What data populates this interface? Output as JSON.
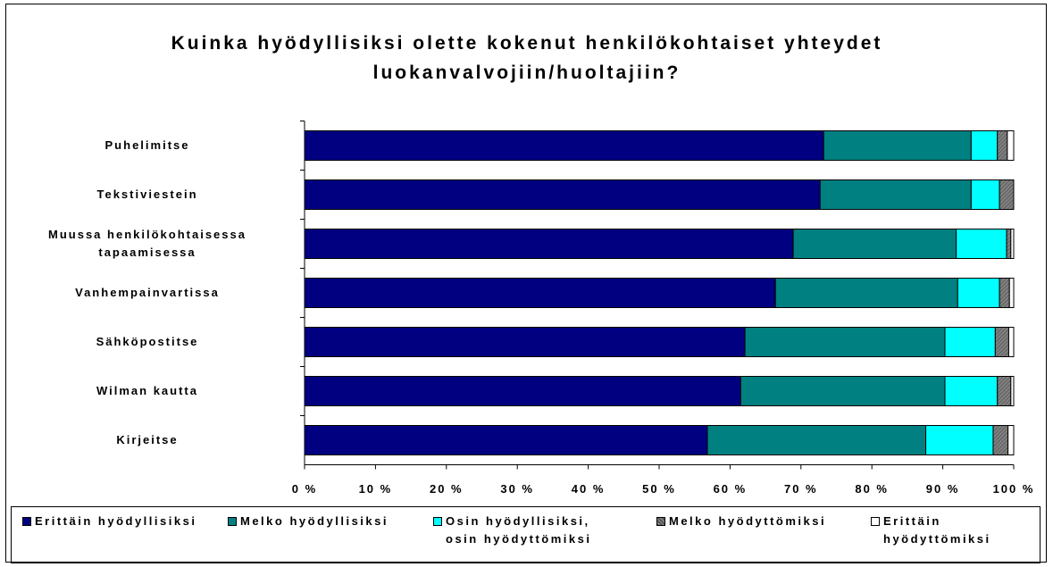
{
  "chart_data": {
    "type": "stacked_bar_horizontal",
    "title": "Kuinka hyödyllisiksi olette kokenut henkilökohtaiset yhteydet luokanvalvojiin/huoltajiin?",
    "categories": [
      "Puhelimitse",
      "Tekstiviestein",
      "Muussa henkilökohtaisessa tapaamisessa",
      "Vanhempainvartissa",
      "Sähköpostitse",
      "Wilman kautta",
      "Kirjeitse"
    ],
    "series": [
      {
        "name": "Erittäin hyödyllisiksi",
        "color": "#000080",
        "values": [
          73.2,
          72.7,
          68.9,
          66.4,
          62.1,
          61.5,
          56.8
        ]
      },
      {
        "name": "Melko hyödyllisiksi",
        "color": "#008080",
        "values": [
          20.8,
          21.3,
          23.0,
          25.7,
          28.2,
          28.8,
          30.8
        ]
      },
      {
        "name": "Osin hyödyllisiksi, osin hyödyttömiksi",
        "color": "#00ffff",
        "values": [
          3.7,
          4.0,
          7.1,
          5.9,
          7.1,
          7.4,
          9.5
        ]
      },
      {
        "name": "Melko hyödyttömiksi",
        "color": "#808080",
        "values": [
          1.4,
          2.0,
          0.6,
          1.4,
          1.9,
          1.9,
          2.1
        ]
      },
      {
        "name": "Erittäin hyödyttömiksi",
        "color": "#ffffff",
        "values": [
          0.9,
          0.0,
          0.4,
          0.6,
          0.7,
          0.4,
          0.8
        ]
      }
    ],
    "xlim": [
      0,
      100
    ],
    "xticks": [
      {
        "value": 0,
        "label": "0 %"
      },
      {
        "value": 10,
        "label": "10 %"
      },
      {
        "value": 20,
        "label": "20 %"
      },
      {
        "value": 30,
        "label": "30 %"
      },
      {
        "value": 40,
        "label": "40 %"
      },
      {
        "value": 50,
        "label": "50 %"
      },
      {
        "value": 60,
        "label": "60 %"
      },
      {
        "value": 70,
        "label": "70 %"
      },
      {
        "value": 80,
        "label": "80 %"
      },
      {
        "value": 90,
        "label": "90 %"
      },
      {
        "value": 100,
        "label": "100 %"
      }
    ],
    "legend": "bottom"
  }
}
